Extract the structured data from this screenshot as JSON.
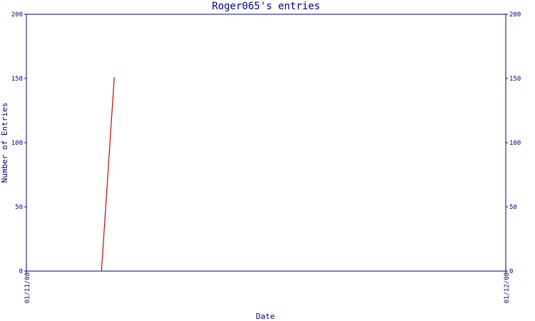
{
  "chart_data": {
    "type": "line",
    "title": "Roger065's entries",
    "xlabel": "Date",
    "ylabel": "Number of Entries",
    "x_ticks": [
      "01/11/08",
      "01/12/08"
    ],
    "y_ticks": [
      "0",
      "50",
      "100",
      "150",
      "200"
    ],
    "right_y_ticks": [
      "0",
      "50",
      "100",
      "150",
      "200"
    ],
    "ylim": [
      0,
      200
    ],
    "xlim": [
      "01/11/08",
      "01/12/08"
    ],
    "grid": false,
    "series": [
      {
        "points": [
          {
            "x": "01/11/08 + 4.7 days",
            "y": 0
          },
          {
            "x": "01/11/08 + 5.5 days",
            "y": 151
          }
        ]
      }
    ],
    "colors": {
      "axis": "#00007f",
      "series": "#cc0000"
    }
  }
}
